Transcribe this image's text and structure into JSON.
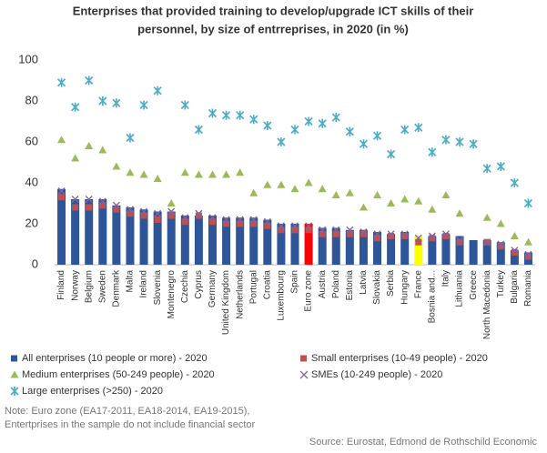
{
  "chart_data": {
    "type": "bar",
    "title": [
      "Enterprises that provided training to develop/upgrade ICT skills of their",
      "personnel, by size of entrreprises, in 2020 (in %)"
    ],
    "categories": [
      "Finland",
      "Norway",
      "Belgium",
      "Sweden",
      "Denmark",
      "Malta",
      "Ireland",
      "Slovenia",
      "Montenegro",
      "Czechia",
      "Cyprus",
      "Germany",
      "United Kingdom",
      "Netherlands",
      "Portugal",
      "Croatia",
      "Luxembourg",
      "Spain",
      "Euro zone",
      "Austria",
      "Poland",
      "Estonia",
      "Latvia",
      "Slovakia",
      "Serbia",
      "Hungary",
      "France",
      "Bosnia and...",
      "Italy",
      "Lithuania",
      "Greece",
      "North Macedonia",
      "Turkey",
      "Bulgaria",
      "Romania"
    ],
    "series": [
      {
        "name": "All enterprises (10 people or more) - 2020",
        "marker": "bar",
        "color": "#2e5597",
        "colors": [
          "#2e5597",
          "#2e5597",
          "#2e5597",
          "#2e5597",
          "#2e5597",
          "#2e5597",
          "#2e5597",
          "#2e5597",
          "#2e5597",
          "#2e5597",
          "#2e5597",
          "#2e5597",
          "#2e5597",
          "#2e5597",
          "#2e5597",
          "#2e5597",
          "#2e5597",
          "#2e5597",
          "#ff0000",
          "#2e5597",
          "#2e5597",
          "#2e5597",
          "#2e5597",
          "#2e5597",
          "#2e5597",
          "#2e5597",
          "#ffff00",
          "#2e5597",
          "#2e5597",
          "#2e5597",
          "#2e5597",
          "#2e5597",
          "#2e5597",
          "#2e5597",
          "#2e5597"
        ],
        "values": [
          37,
          32,
          32,
          32,
          29,
          28,
          27,
          26,
          26,
          24,
          24,
          24,
          23,
          23,
          23,
          22,
          20,
          20,
          20,
          18,
          18,
          17,
          17,
          16,
          15,
          16,
          14,
          14,
          15,
          14,
          12,
          12,
          11,
          7,
          6
        ]
      },
      {
        "name": "Small enterprises (10-49 people) - 2020",
        "marker": "square",
        "color": "#c0504d",
        "values": [
          33,
          28,
          28,
          29,
          27,
          25,
          24,
          22,
          24,
          21,
          24,
          21,
          20,
          20,
          20,
          19,
          17,
          17,
          17,
          15,
          15,
          15,
          15,
          13,
          14,
          14,
          11,
          13,
          14,
          11,
          null,
          11,
          9,
          6,
          4
        ]
      },
      {
        "name": "Medium enterprises (50-249 people) - 2020",
        "marker": "triangle",
        "color": "#9bbb59",
        "values": [
          61,
          52,
          58,
          56,
          48,
          45,
          44,
          42,
          30,
          45,
          44,
          44,
          44,
          45,
          35,
          39,
          39,
          37,
          40,
          37,
          34,
          35,
          28,
          34,
          30,
          32,
          31,
          27,
          34,
          25,
          null,
          23,
          20,
          14,
          11
        ]
      },
      {
        "name": "SMEs (10-249 people) - 2020",
        "marker": "cross",
        "color": "#8064a2",
        "values": [
          36,
          32,
          32,
          31,
          29,
          27,
          26,
          25,
          26,
          23,
          25,
          23,
          22,
          22,
          22,
          21,
          19,
          19,
          19,
          17,
          17,
          17,
          16,
          15,
          15,
          15,
          13,
          14,
          15,
          12,
          null,
          11,
          10,
          7,
          5
        ]
      },
      {
        "name": "Large enterprises (>250) - 2020",
        "marker": "star",
        "color": "#4bacc6",
        "values": [
          89,
          77,
          90,
          80,
          79,
          62,
          78,
          85,
          null,
          78,
          66,
          74,
          73,
          73,
          71,
          68,
          60,
          66,
          70,
          69,
          72,
          65,
          59,
          63,
          54,
          66,
          67,
          55,
          61,
          60,
          59,
          47,
          48,
          40,
          30
        ]
      }
    ],
    "ylim": [
      0,
      100
    ],
    "yticks": [
      0,
      20,
      40,
      60,
      80,
      100
    ],
    "grid": false,
    "note": [
      "Note: Euro zone (EA17-2011, EA18-2014, EA19-2015),",
      "Entertprises in the sample do not include financial sector"
    ],
    "source": "Source: Eurostat, Edmond de Rothschild Economic"
  }
}
